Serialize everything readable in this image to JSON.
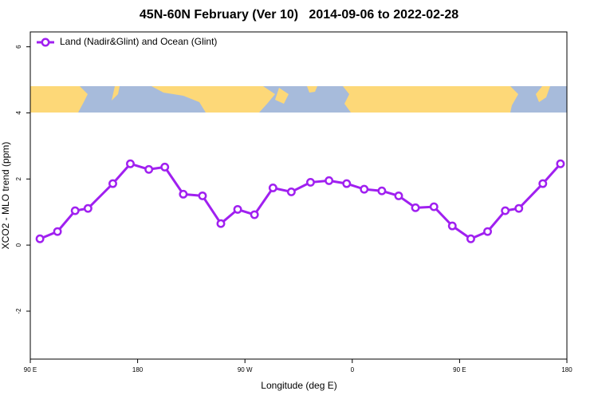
{
  "chart_data": {
    "type": "line",
    "title": "45N-60N February (Ver 10)   2014-09-06 to 2022-02-28",
    "x_label": "Longitude (deg E)",
    "y_label": "XCO2 - MLO trend (ppm)",
    "legend": "top-left",
    "xlim": [
      90,
      540
    ],
    "ylim": [
      -3.45,
      6.45
    ],
    "xticks": [
      {
        "value": 90,
        "label": "90 E"
      },
      180,
      {
        "value": 270,
        "label": "90 W"
      },
      {
        "value": 360,
        "label": "0"
      },
      {
        "value": 450,
        "label": "90 E"
      },
      {
        "value": 540,
        "label": "180"
      }
    ],
    "yticks": [
      -2,
      0,
      2,
      4,
      6
    ],
    "series": [
      {
        "name": "Land (Nadir&Glint) and Ocean (Glint)",
        "color": "#a020f0",
        "x": [
          98.1,
          112.8,
          127.6,
          138.4,
          159.2,
          173.9,
          189.4,
          202.8,
          218.3,
          234.4,
          249.8,
          263.9,
          278.0,
          293.5,
          308.9,
          325.0,
          340.5,
          355.3,
          370.0,
          384.8,
          398.9,
          413.0,
          428.5,
          443.9,
          459.4,
          473.5,
          488.3,
          499.7,
          519.8,
          534.6
        ],
        "values": [
          0.19,
          0.41,
          1.04,
          1.11,
          1.86,
          2.46,
          2.29,
          2.36,
          1.54,
          1.49,
          0.65,
          1.08,
          0.92,
          1.73,
          1.61,
          1.9,
          1.95,
          1.86,
          1.69,
          1.64,
          1.49,
          1.13,
          1.16,
          0.58,
          0.19,
          0.41,
          1.04,
          1.11,
          1.86,
          2.46
        ]
      }
    ]
  }
}
